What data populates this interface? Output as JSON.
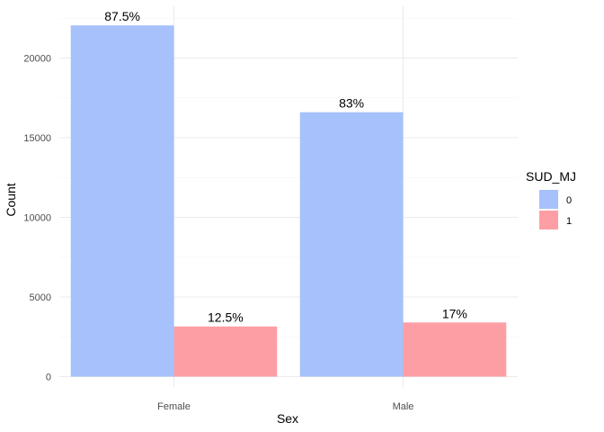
{
  "chart_data": {
    "type": "bar",
    "title": "",
    "xlabel": "Sex",
    "ylabel": "Count",
    "categories": [
      "Female",
      "Male"
    ],
    "ylim": [
      0,
      23000
    ],
    "yticks": [
      0,
      5000,
      10000,
      15000,
      20000
    ],
    "grid": true,
    "legend": {
      "title": "SUD_MJ",
      "position": "right"
    },
    "series": [
      {
        "name": "0",
        "color": "#a6c1fb",
        "values": [
          22050,
          16600
        ],
        "labels": [
          "87.5%",
          "83%"
        ]
      },
      {
        "name": "1",
        "color": "#fd9ea4",
        "values": [
          3150,
          3400
        ],
        "labels": [
          "12.5%",
          "17%"
        ]
      }
    ]
  }
}
